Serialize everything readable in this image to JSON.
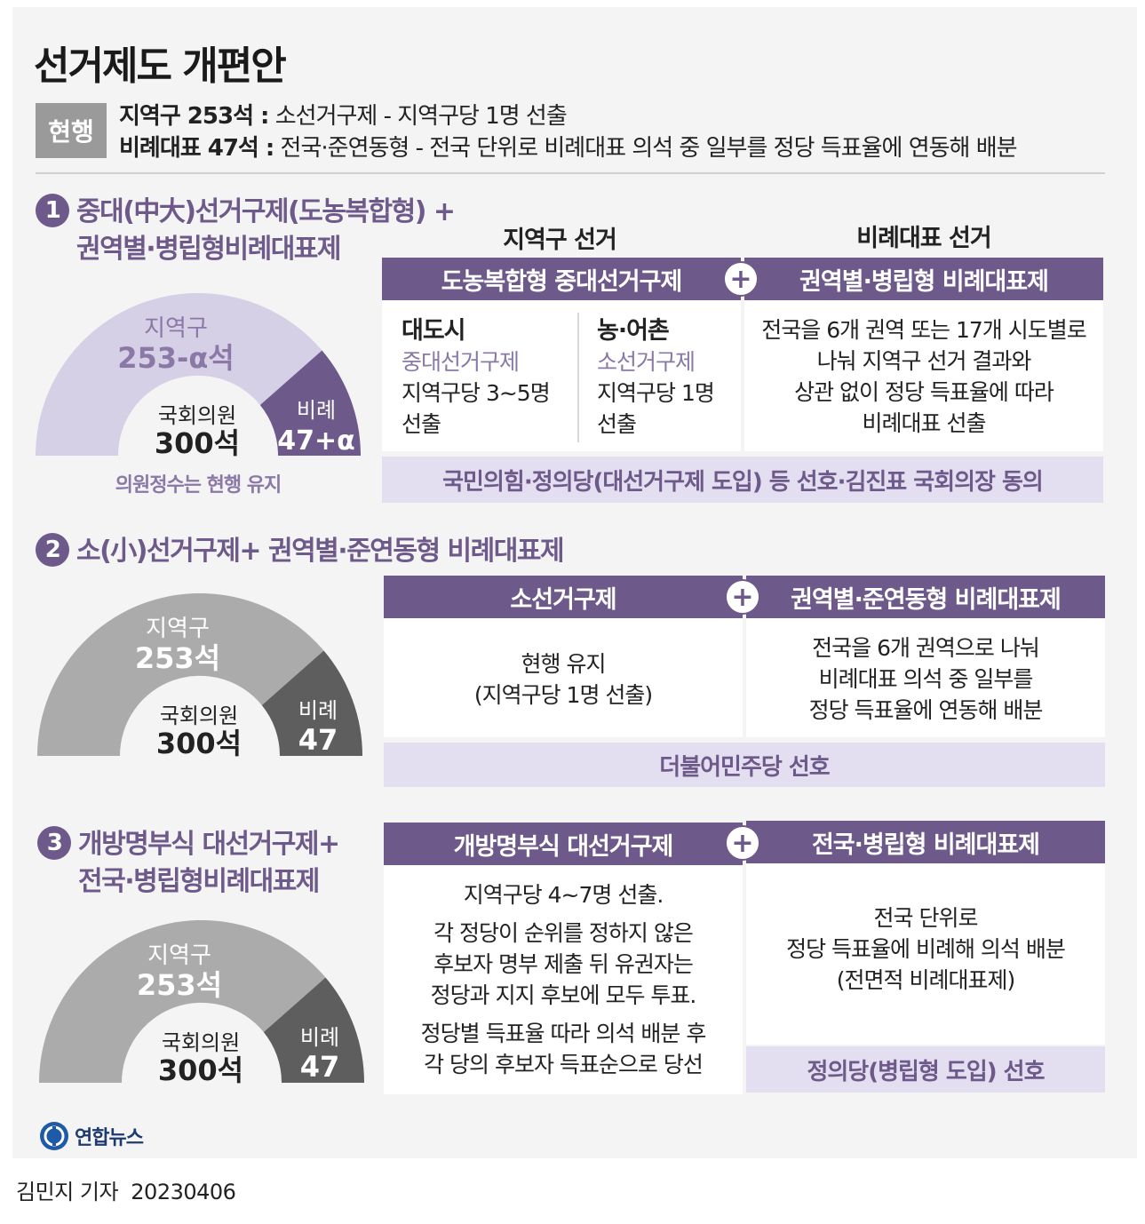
{
  "title": "선거제도 개편안",
  "current": {
    "badge": "현행",
    "line1_bold": "지역구 253석 :",
    "line1_text": " 소선거구제 - 지역구당 1명 선출",
    "line2_bold": "비례대표 47석 :",
    "line2_text": " 전국·준연동형 - 전국 단위로 비례대표 의석 중 일부를 정당 득표율에 연동해 배분"
  },
  "plans": [
    {
      "num": "1",
      "title1": "중대(中大)선거구제(도농복합형) +",
      "title2": "권역별·병립형비례대표제",
      "gauge": {
        "district_label": "지역구",
        "district_value": "253-α석",
        "total_label": "국회의원",
        "total_value": "300석",
        "pr_label": "비례",
        "pr_value": "47+α",
        "caption": "의원정수는 현행 유지"
      },
      "col_head_left": "지역구 선거",
      "col_head_right": "비례대표 선거",
      "bar_left": "도농복합형 중대선거구제",
      "bar_right": "권역별·병립형 비례대표제",
      "city_title": "대도시",
      "city_sub": "중대선거구제",
      "city_l1": "지역구당 3~5명",
      "city_l2": "선출",
      "rural_title": "농·어촌",
      "rural_sub": "소선거구제",
      "rural_l1": "지역구당 1명",
      "rural_l2": "선출",
      "right_l1": "전국을 6개 권역 또는 17개 시도별로",
      "right_l2": "나눠 지역구 선거 결과와",
      "right_l3": "상관 없이 정당 득표율에 따라",
      "right_l4": "비례대표 선출",
      "note": "국민의힘·정의당(대선거구제 도입) 등 선호·김진표 국회의장 동의"
    },
    {
      "num": "2",
      "title1": "소(小)선거구제+ 권역별·준연동형 비례대표제",
      "gauge": {
        "district_label": "지역구",
        "district_value": "253석",
        "total_label": "국회의원",
        "total_value": "300석",
        "pr_label": "비례",
        "pr_value": "47"
      },
      "bar_left": "소선거구제",
      "bar_right": "권역별·준연동형 비례대표제",
      "left_l1": "현행 유지",
      "left_l2": "(지역구당 1명 선출)",
      "right_l1": "전국을 6개 권역으로 나눠",
      "right_l2": "비례대표 의석 중 일부를",
      "right_l3": "정당 득표율에 연동해 배분",
      "note": "더불어민주당 선호"
    },
    {
      "num": "3",
      "title1": "개방명부식 대선거구제+",
      "title2": "전국·병립형비례대표제",
      "gauge": {
        "district_label": "지역구",
        "district_value": "253석",
        "total_label": "국회의원",
        "total_value": "300석",
        "pr_label": "비례",
        "pr_value": "47"
      },
      "bar_left": "개방명부식 대선거구제",
      "bar_right": "전국·병립형 비례대표제",
      "left_l1": "지역구당 4~7명 선출.",
      "left_l2": "각 정당이 순위를 정하지 않은",
      "left_l3": "후보자 명부 제출 뒤 유권자는",
      "left_l4": "정당과 지지 후보에 모두 투표.",
      "left_l5": "정당별 득표율 따라 의석 배분 후",
      "left_l6": "각 당의 후보자 득표순으로 당선",
      "right_l1": "전국 단위로",
      "right_l2": "정당 득표율에 비례해 의석 배분",
      "right_l3": "(전면적 비례대표제)",
      "note": "정의당(병립형 도입) 선호"
    }
  ],
  "plus_sign": "+",
  "logo_text": "연합뉴스",
  "credit": "김민지 기자  20230406",
  "colors": {
    "accent": "#6e5a8a",
    "light_purple": "#d6d0e6",
    "note_bg": "#e3dff0",
    "gray_district": "#ababab",
    "dark_gray_pr": "#5e5e5e"
  }
}
